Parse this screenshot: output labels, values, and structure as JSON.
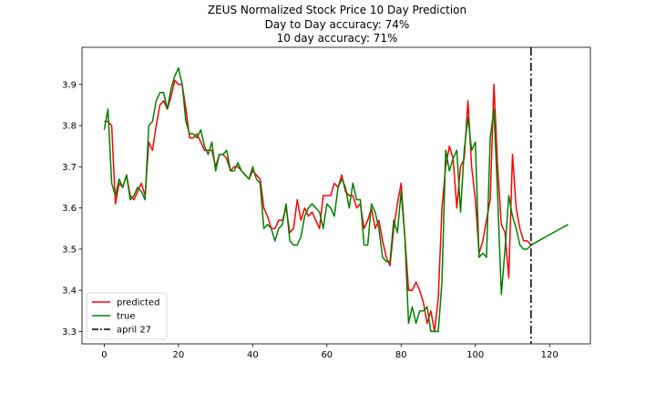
{
  "chart_data": {
    "type": "line",
    "title": "ZEUS Normalized Stock Price 10 Day Prediction",
    "subtitle_lines": [
      "Day to Day accuracy: 74%",
      "10 day accuracy: 71%"
    ],
    "xlabel": "",
    "ylabel": "",
    "xlim": [
      -6,
      131
    ],
    "ylim": [
      3.27,
      3.99
    ],
    "x_ticks": [
      0,
      20,
      40,
      60,
      80,
      100,
      120
    ],
    "y_ticks": [
      3.3,
      3.4,
      3.5,
      3.6,
      3.7,
      3.8,
      3.9
    ],
    "grid": false,
    "legend_position": "lower-left",
    "vline": {
      "x": 115,
      "name": "april 27",
      "color": "#000000"
    },
    "series": [
      {
        "name": "predicted",
        "color": "#ff0000",
        "x": [
          0,
          1,
          2,
          3,
          4,
          5,
          6,
          7,
          8,
          9,
          10,
          11,
          12,
          13,
          14,
          15,
          16,
          17,
          18,
          19,
          20,
          21,
          22,
          23,
          24,
          25,
          26,
          27,
          28,
          29,
          30,
          31,
          32,
          33,
          34,
          35,
          36,
          37,
          38,
          39,
          40,
          41,
          42,
          43,
          44,
          45,
          46,
          47,
          48,
          49,
          50,
          51,
          52,
          53,
          54,
          55,
          56,
          57,
          58,
          59,
          60,
          61,
          62,
          63,
          64,
          65,
          66,
          67,
          68,
          69,
          70,
          71,
          72,
          73,
          74,
          75,
          76,
          77,
          78,
          79,
          80,
          81,
          82,
          83,
          84,
          85,
          86,
          87,
          88,
          89,
          90,
          91,
          92,
          93,
          94,
          95,
          96,
          97,
          98,
          99,
          100,
          101,
          102,
          103,
          104,
          105,
          106,
          107,
          108,
          109,
          110,
          111,
          112,
          113,
          114,
          115
        ],
        "values": [
          3.81,
          3.81,
          3.8,
          3.61,
          3.66,
          3.65,
          3.68,
          3.63,
          3.62,
          3.64,
          3.66,
          3.63,
          3.76,
          3.74,
          3.8,
          3.85,
          3.86,
          3.84,
          3.87,
          3.91,
          3.9,
          3.9,
          3.84,
          3.77,
          3.77,
          3.78,
          3.76,
          3.74,
          3.74,
          3.74,
          3.7,
          3.73,
          3.73,
          3.72,
          3.69,
          3.7,
          3.7,
          3.69,
          3.68,
          3.67,
          3.69,
          3.68,
          3.67,
          3.6,
          3.58,
          3.55,
          3.55,
          3.57,
          3.57,
          3.6,
          3.54,
          3.55,
          3.62,
          3.57,
          3.6,
          3.58,
          3.59,
          3.57,
          3.55,
          3.63,
          3.63,
          3.63,
          3.66,
          3.65,
          3.68,
          3.64,
          3.63,
          3.63,
          3.6,
          3.61,
          3.55,
          3.57,
          3.6,
          3.55,
          3.57,
          3.52,
          3.48,
          3.46,
          3.55,
          3.61,
          3.66,
          3.53,
          3.4,
          3.4,
          3.42,
          3.4,
          3.37,
          3.32,
          3.35,
          3.3,
          3.38,
          3.6,
          3.7,
          3.75,
          3.72,
          3.6,
          3.7,
          3.72,
          3.86,
          3.7,
          3.62,
          3.49,
          3.52,
          3.57,
          3.62,
          3.9,
          3.7,
          3.56,
          3.54,
          3.43,
          3.73,
          3.6,
          3.55,
          3.52,
          3.52,
          3.51
        ]
      },
      {
        "name": "true",
        "color": "#008000",
        "x": [
          0,
          1,
          2,
          3,
          4,
          5,
          6,
          7,
          8,
          9,
          10,
          11,
          12,
          13,
          14,
          15,
          16,
          17,
          18,
          19,
          20,
          21,
          22,
          23,
          24,
          25,
          26,
          27,
          28,
          29,
          30,
          31,
          32,
          33,
          34,
          35,
          36,
          37,
          38,
          39,
          40,
          41,
          42,
          43,
          44,
          45,
          46,
          47,
          48,
          49,
          50,
          51,
          52,
          53,
          54,
          55,
          56,
          57,
          58,
          59,
          60,
          61,
          62,
          63,
          64,
          65,
          66,
          67,
          68,
          69,
          70,
          71,
          72,
          73,
          74,
          75,
          76,
          77,
          78,
          79,
          80,
          81,
          82,
          83,
          84,
          85,
          86,
          87,
          88,
          89,
          90,
          91,
          92,
          93,
          94,
          95,
          96,
          97,
          98,
          99,
          100,
          101,
          102,
          103,
          104,
          105,
          106,
          107,
          108,
          109,
          110,
          111,
          112,
          113,
          114,
          115,
          116,
          117,
          118,
          119,
          120,
          121,
          122,
          123,
          124,
          125
        ],
        "values": [
          3.79,
          3.84,
          3.66,
          3.63,
          3.67,
          3.65,
          3.68,
          3.62,
          3.63,
          3.65,
          3.64,
          3.62,
          3.8,
          3.81,
          3.86,
          3.88,
          3.88,
          3.84,
          3.89,
          3.92,
          3.94,
          3.9,
          3.81,
          3.78,
          3.78,
          3.77,
          3.79,
          3.75,
          3.73,
          3.76,
          3.69,
          3.73,
          3.73,
          3.74,
          3.69,
          3.69,
          3.71,
          3.69,
          3.68,
          3.67,
          3.7,
          3.67,
          3.66,
          3.55,
          3.56,
          3.55,
          3.52,
          3.55,
          3.56,
          3.61,
          3.52,
          3.51,
          3.51,
          3.53,
          3.58,
          3.6,
          3.61,
          3.6,
          3.59,
          3.55,
          3.61,
          3.6,
          3.58,
          3.65,
          3.67,
          3.65,
          3.6,
          3.66,
          3.62,
          3.62,
          3.51,
          3.51,
          3.61,
          3.59,
          3.55,
          3.48,
          3.47,
          3.47,
          3.57,
          3.54,
          3.64,
          3.53,
          3.32,
          3.36,
          3.32,
          3.35,
          3.35,
          3.36,
          3.3,
          3.3,
          3.3,
          3.42,
          3.74,
          3.69,
          3.72,
          3.74,
          3.59,
          3.74,
          3.82,
          3.74,
          3.76,
          3.48,
          3.49,
          3.48,
          3.77,
          3.84,
          3.63,
          3.39,
          3.5,
          3.63,
          3.58,
          3.55,
          3.51,
          3.5,
          3.5,
          3.51,
          3.515,
          3.52,
          3.525,
          3.53,
          3.535,
          3.54,
          3.545,
          3.55,
          3.555,
          3.56
        ]
      }
    ]
  }
}
